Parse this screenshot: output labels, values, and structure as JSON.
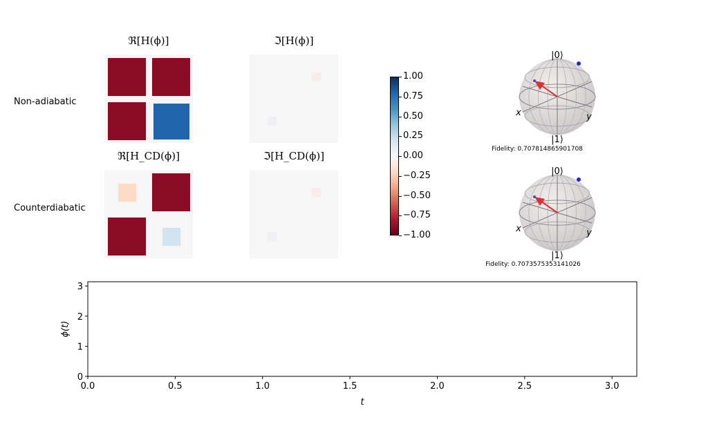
{
  "row_labels": [
    "Non-adiabatic",
    "Counterdiabatic"
  ],
  "panel_titles": [
    "ℜ[H(ϕ)]",
    "ℑ[H(ϕ)]",
    "ℜ[H_CD(ϕ)]",
    "ℑ[H_CD(ϕ)]"
  ],
  "colors": {
    "neg": "#c1373a",
    "pos": "#2f79b5",
    "light_neg": "#fcdbc7",
    "light_pos": "#d0e4ef",
    "faint_neg": "#fbecec",
    "faint_pos": "#eef0f5",
    "panel_bg": "#f5f6f5"
  },
  "chart_data": [
    {
      "type": "heatmap",
      "title": "ℜ[H(ϕ)]",
      "row_label": "Non-adiabatic",
      "values": [
        [
          -0.9,
          -0.9
        ],
        [
          -0.9,
          0.8
        ]
      ]
    },
    {
      "type": "heatmap",
      "title": "ℑ[H(ϕ)]",
      "values": [
        [
          0,
          -0.03
        ],
        [
          0.03,
          0
        ]
      ]
    },
    {
      "type": "heatmap",
      "title": "ℜ[H_CD(ϕ)]",
      "row_label": "Counterdiabatic",
      "values": [
        [
          -0.2,
          -0.9
        ],
        [
          -0.9,
          0.2
        ]
      ]
    },
    {
      "type": "heatmap",
      "title": "ℑ[H_CD(ϕ)]",
      "values": [
        [
          0,
          -0.03
        ],
        [
          0.03,
          0
        ]
      ]
    },
    {
      "type": "colorbar",
      "range": [
        -1.0,
        1.0
      ],
      "ticks": [
        "1.00",
        "0.75",
        "0.50",
        "0.25",
        "0.00",
        "−0.25",
        "−0.50",
        "−0.75",
        "−1.00"
      ],
      "colormap": "RdBu"
    },
    {
      "type": "bloch",
      "labels": {
        "top": "|0⟩",
        "bottom": "|1⟩",
        "x": "x",
        "y": "y"
      },
      "fidelity_text": "Fidelity: 0.707814865901708"
    },
    {
      "type": "bloch",
      "labels": {
        "top": "|0⟩",
        "bottom": "|1⟩",
        "x": "x",
        "y": "y"
      },
      "fidelity_text": "Fidelity: 0.7073575353141026"
    },
    {
      "type": "line",
      "xlabel": "t",
      "ylabel": "ϕ(t)",
      "xlim": [
        0,
        3.1416
      ],
      "ylim": [
        0,
        3.1416
      ],
      "xticks": [
        "0.0",
        "0.5",
        "1.0",
        "1.5",
        "2.0",
        "2.5",
        "3.0"
      ],
      "yticks": [
        "0",
        "1",
        "2",
        "3"
      ],
      "series": []
    }
  ]
}
